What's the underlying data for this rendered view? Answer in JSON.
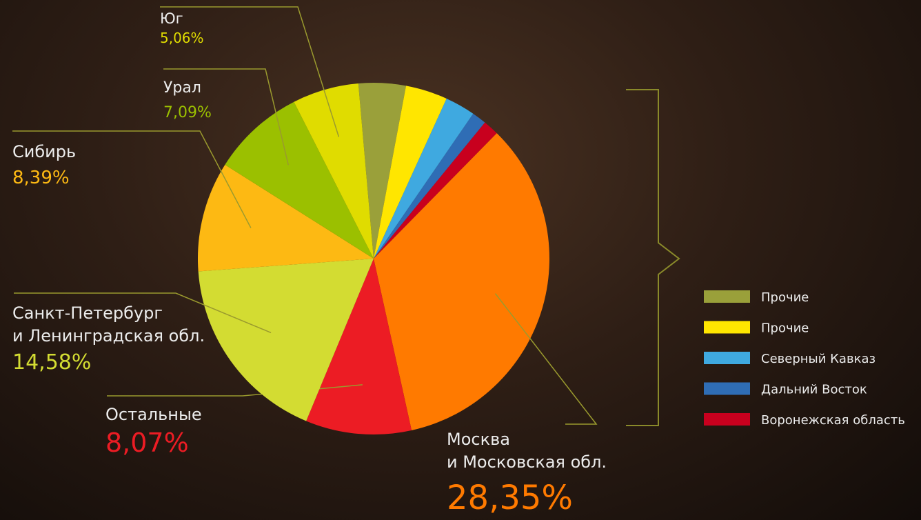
{
  "chart_data": {
    "type": "pie",
    "start_angle": -5,
    "slices": [
      {
        "name": [
          "Прочие"
        ],
        "value": 3.6,
        "color": "#9aa03a"
      },
      {
        "name": [
          "Прочие"
        ],
        "value": 3.2,
        "color": "#ffe600"
      },
      {
        "name": [
          "Северный Кавказ"
        ],
        "value": 2.3,
        "color": "#3fa9e0"
      },
      {
        "name": [
          "Дальний Восток"
        ],
        "value": 1.1,
        "color": "#2f6db5"
      },
      {
        "name": [
          "Воронежская область"
        ],
        "value": 1.2,
        "color": "#c8001e"
      },
      {
        "name": [
          "Москва",
          "и Московская обл."
        ],
        "value": 28.35,
        "value_label": "28,35%",
        "color": "#ff7a00"
      },
      {
        "name": [
          "Остальные"
        ],
        "value": 8.07,
        "value_label": "8,07%",
        "color": "#ec1c24"
      },
      {
        "name": [
          "Санкт-Петербург",
          "и Ленинградская обл."
        ],
        "value": 14.58,
        "value_label": "14,58%",
        "color": "#d3dc32"
      },
      {
        "name": [
          "Сибирь"
        ],
        "value": 8.39,
        "value_label": "8,39%",
        "color": "#fdb913"
      },
      {
        "name": [
          "Урал"
        ],
        "value": 7.09,
        "value_label": "7,09%",
        "color": "#9bc000"
      },
      {
        "name": [
          "Юг"
        ],
        "value": 5.06,
        "value_label": "5,06%",
        "color": "#e0dc00"
      }
    ]
  }
}
